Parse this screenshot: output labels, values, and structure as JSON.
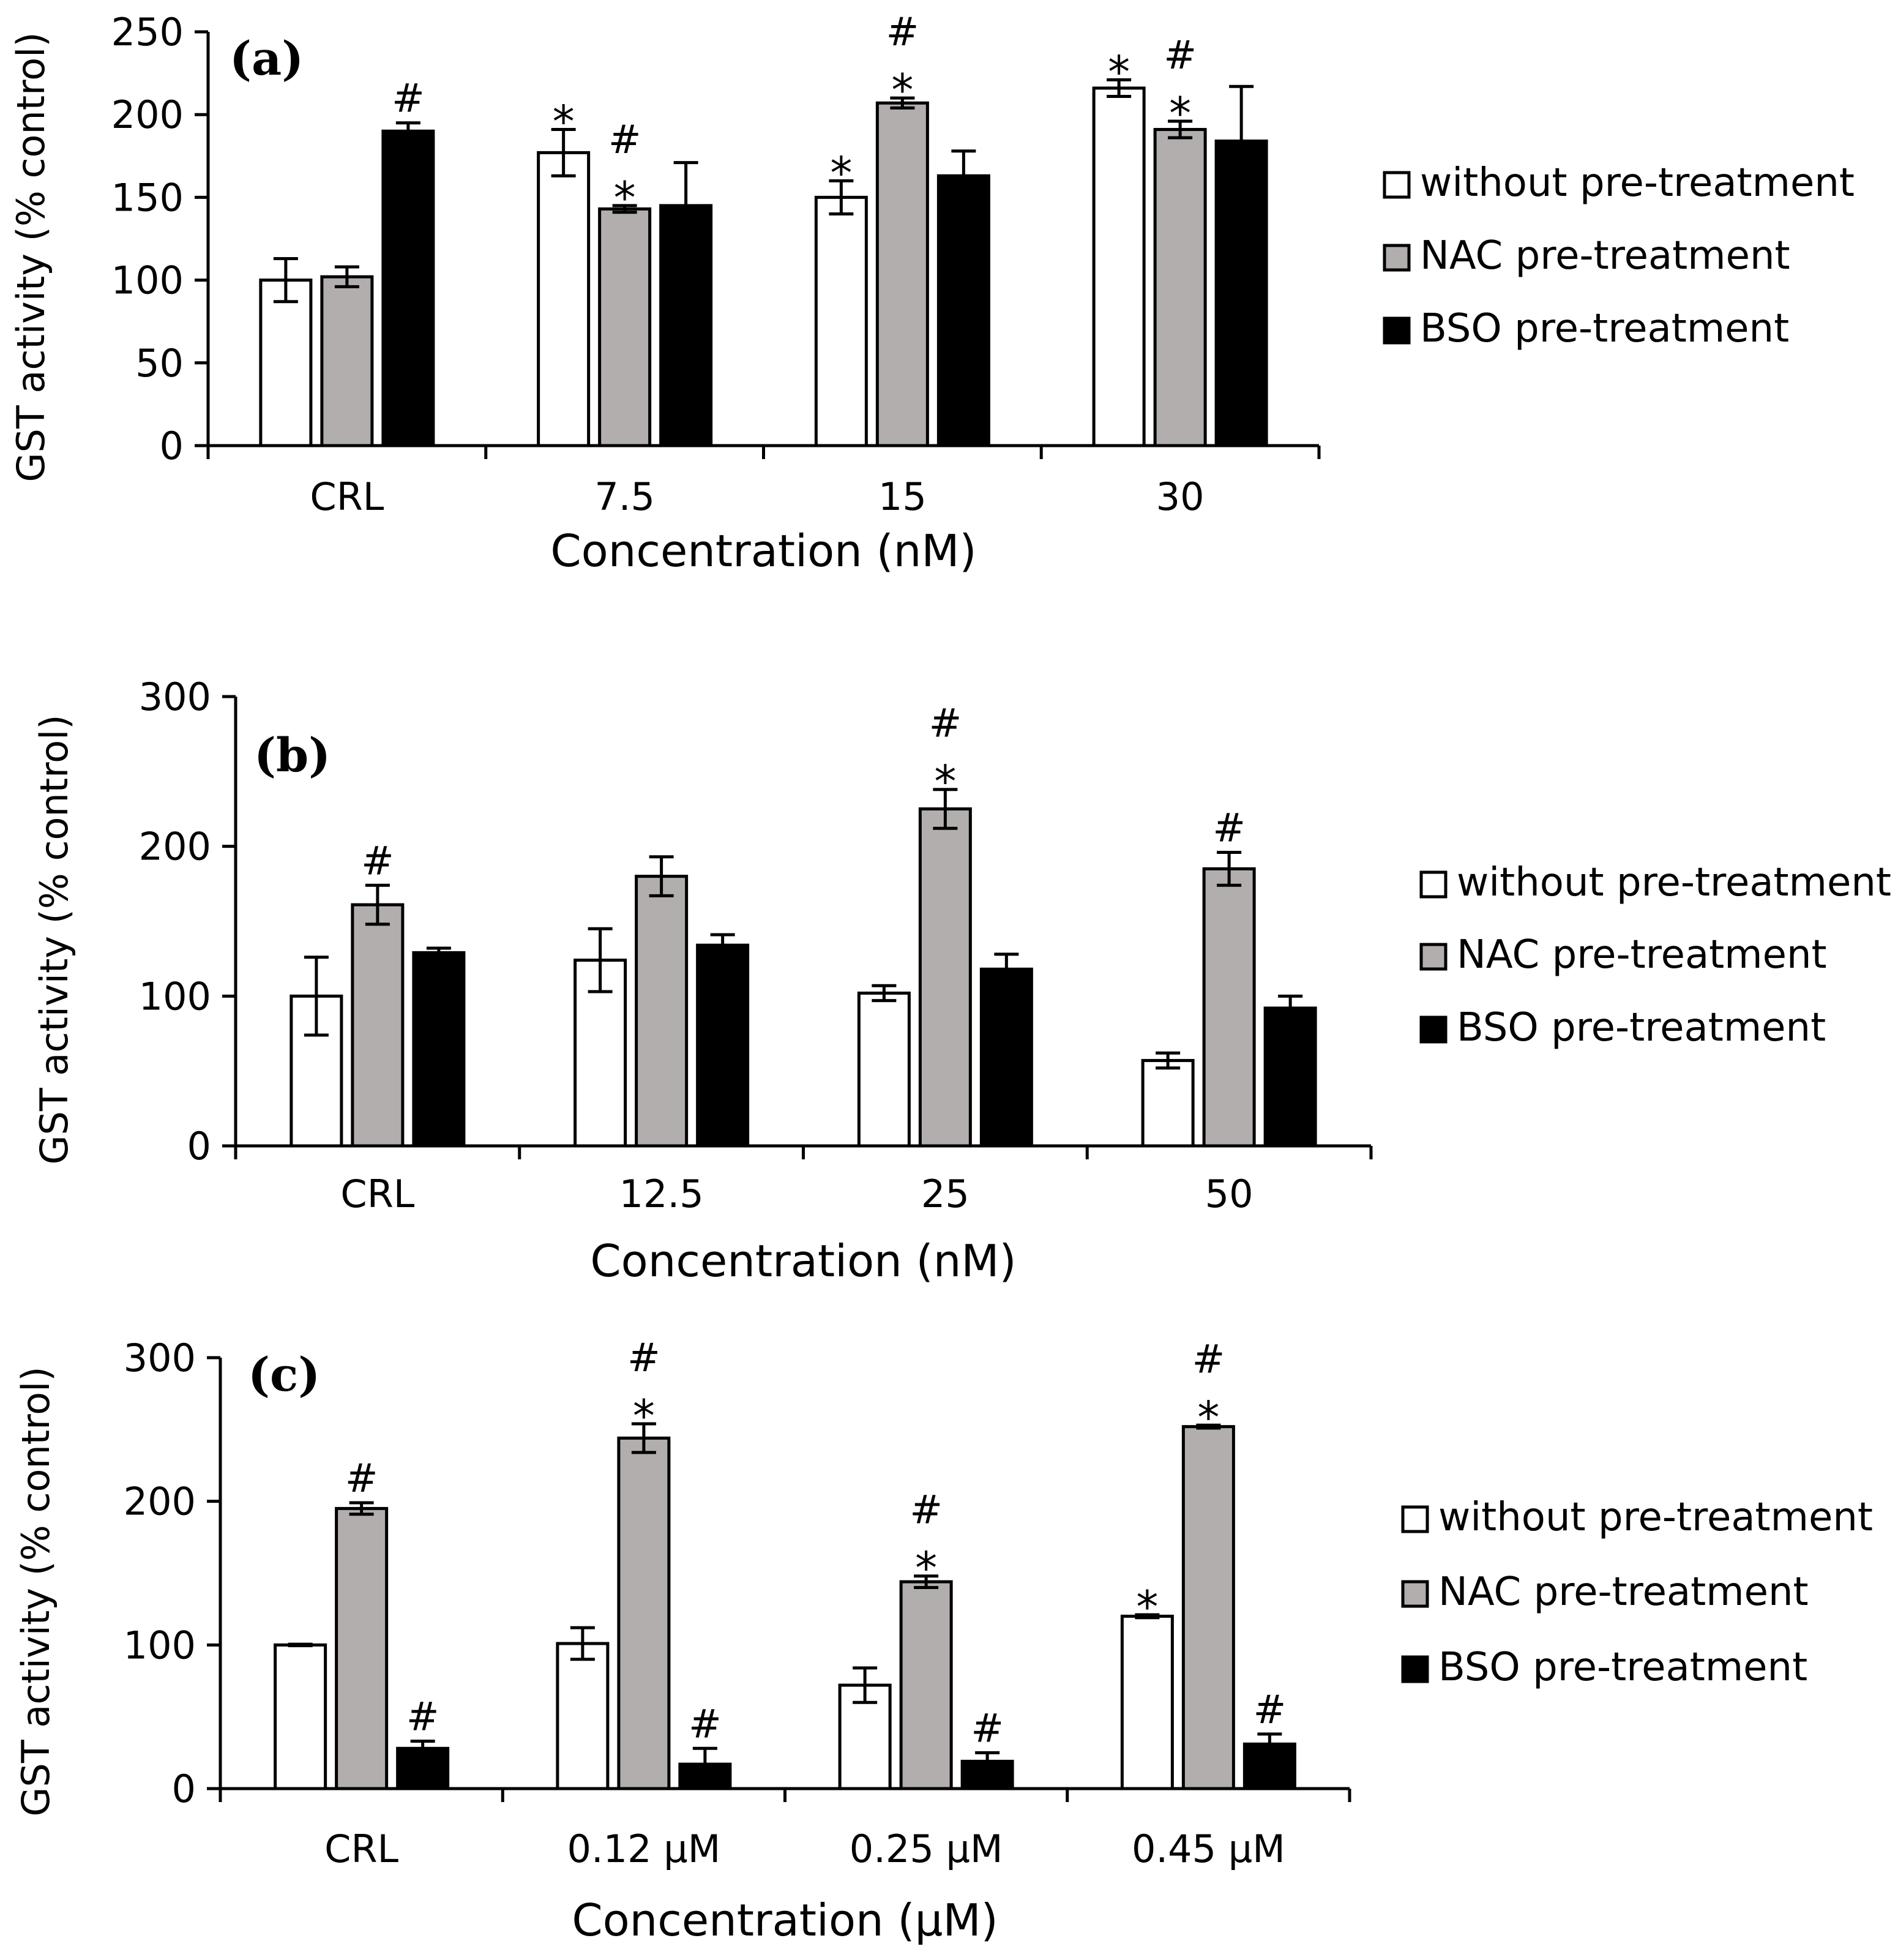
{
  "figure": {
    "series_names": [
      "without pre-treatment",
      "NAC pre-treatment",
      "BSO pre-treatment"
    ],
    "series_colors": [
      "#ffffff",
      "#b2aeae",
      "#000000"
    ]
  },
  "chart_data": [
    {
      "type": "bar",
      "panel_label": "(a)",
      "categories": [
        "CRL",
        "7.5",
        "15",
        "30"
      ],
      "xlabel": "Concentration (nM)",
      "ylabel": "GST activity (% control)",
      "ylim": [
        0,
        250
      ],
      "yticks": [
        0,
        50,
        100,
        150,
        200,
        250
      ],
      "legend_position": "right",
      "grid": false,
      "series": [
        {
          "name": "without pre-treatment",
          "values": [
            100,
            177,
            150,
            216
          ],
          "errors": [
            13,
            14,
            10,
            5
          ],
          "marks": [
            "",
            "*",
            "*",
            "*"
          ]
        },
        {
          "name": "NAC pre-treatment",
          "values": [
            102,
            143,
            207,
            191
          ],
          "errors": [
            6,
            2,
            3,
            5
          ],
          "marks": [
            "",
            "*#",
            "*#",
            "*#"
          ]
        },
        {
          "name": "BSO pre-treatment",
          "values": [
            190,
            145,
            163,
            184
          ],
          "errors": [
            5,
            26,
            15,
            33
          ],
          "marks": [
            "#",
            "",
            "",
            ""
          ]
        }
      ]
    },
    {
      "type": "bar",
      "panel_label": "(b)",
      "categories": [
        "CRL",
        "12.5",
        "25",
        "50"
      ],
      "xlabel": "Concentration (nM)",
      "ylabel": "GST activity (% control)",
      "ylim": [
        0,
        300
      ],
      "yticks": [
        0,
        100,
        200,
        300
      ],
      "legend_position": "right",
      "grid": false,
      "series": [
        {
          "name": "without pre-treatment",
          "values": [
            100,
            124,
            102,
            57
          ],
          "errors": [
            26,
            21,
            5,
            5
          ],
          "marks": [
            "",
            "",
            "",
            ""
          ]
        },
        {
          "name": "NAC pre-treatment",
          "values": [
            161,
            180,
            225,
            185
          ],
          "errors": [
            13,
            13,
            13,
            11
          ],
          "marks": [
            "#",
            "",
            "*#",
            "#"
          ]
        },
        {
          "name": "BSO pre-treatment",
          "values": [
            129,
            134,
            118,
            92
          ],
          "errors": [
            3,
            7,
            10,
            8
          ],
          "marks": [
            "",
            "",
            "",
            ""
          ]
        }
      ]
    },
    {
      "type": "bar",
      "panel_label": "(c)",
      "categories": [
        "CRL",
        "0.12 μM",
        "0.25 μM",
        "0.45 μM"
      ],
      "xlabel": "Concentration (μM)",
      "ylabel": "GST activity (% control)",
      "ylim": [
        0,
        300
      ],
      "yticks": [
        0,
        100,
        200,
        300
      ],
      "legend_position": "right",
      "grid": false,
      "series": [
        {
          "name": "without pre-treatment",
          "values": [
            100,
            101,
            72,
            120
          ],
          "errors": [
            0.5,
            11,
            12,
            1
          ],
          "marks": [
            "",
            "",
            "",
            "*"
          ]
        },
        {
          "name": "NAC pre-treatment",
          "values": [
            195,
            244,
            144,
            252
          ],
          "errors": [
            4,
            10,
            4,
            1
          ],
          "marks": [
            "#",
            "*#",
            "*#",
            "*#"
          ]
        },
        {
          "name": "BSO pre-treatment",
          "values": [
            28,
            17,
            19,
            31
          ],
          "errors": [
            5,
            11,
            6,
            7
          ],
          "marks": [
            "#",
            "#",
            "#",
            "#"
          ]
        }
      ]
    }
  ]
}
